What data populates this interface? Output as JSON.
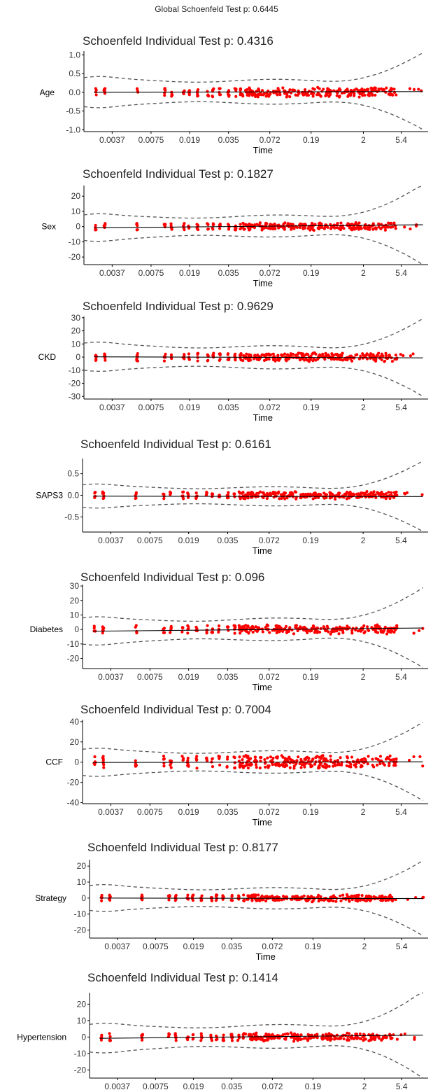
{
  "global_title": "Global Schoenfeld Test p: 0.6445",
  "x_axis_label": "Time",
  "x_ticks": [
    "0.0037",
    "0.0075",
    "0.019",
    "0.035",
    "0.072",
    "0.19",
    "2",
    "5.4"
  ],
  "colors": {
    "points": "#ff0000",
    "fit": "#000000",
    "band": "#555555",
    "axis": "#000000"
  },
  "chart_data": [
    {
      "type": "scatter",
      "ylabel": "Age",
      "title": "Schoenfeld Individual Test p: 0.4316",
      "yticks": [
        "1.0",
        "0.5",
        "0.0",
        "-0.5",
        "-1.0"
      ],
      "tick_values": [
        1,
        0.5,
        0,
        -0.5,
        -1
      ],
      "ylim": [
        -1.05,
        1.1
      ],
      "point_spread": 0.12,
      "band_min": 0.3,
      "band_end": 1.0,
      "fit_start": 0.0,
      "fit_end": 0.02
    },
    {
      "type": "scatter",
      "ylabel": "Sex",
      "title": "Schoenfeld Individual Test p: 0.1827",
      "yticks": [
        "20",
        "10",
        "0",
        "-10",
        "-20"
      ],
      "tick_values": [
        20,
        10,
        0,
        -10,
        -20
      ],
      "ylim": [
        -25,
        27
      ],
      "point_spread": 2.2,
      "band_min": 6.5,
      "band_end": 26,
      "fit_start": -0.8,
      "fit_end": 1.2
    },
    {
      "type": "scatter",
      "ylabel": "CKD",
      "title": "Schoenfeld Individual Test p: 0.9629",
      "yticks": [
        "30",
        "20",
        "10",
        "0",
        "-10",
        "-20",
        "-30"
      ],
      "tick_values": [
        30,
        20,
        10,
        0,
        -10,
        -20,
        -30
      ],
      "ylim": [
        -32,
        31
      ],
      "point_spread": 3,
      "band_min": 8,
      "band_end": 29,
      "fit_start": 0.2,
      "fit_end": -0.6
    },
    {
      "type": "scatter",
      "ylabel": "SAPS3",
      "title": "Schoenfeld Individual Test p: 0.6161",
      "yticks": [
        "0.5",
        "0.0",
        "-0.5"
      ],
      "tick_values": [
        0.5,
        0,
        -0.5
      ],
      "ylim": [
        -0.85,
        0.85
      ],
      "point_spread": 0.08,
      "band_min": 0.2,
      "band_end": 0.8,
      "fit_start": -0.02,
      "fit_end": -0.03
    },
    {
      "type": "scatter",
      "ylabel": "Diabetes",
      "title": "Schoenfeld Individual Test p: 0.096",
      "yticks": [
        "30",
        "20",
        "10",
        "0",
        "-10",
        "-20"
      ],
      "tick_values": [
        30,
        20,
        10,
        0,
        -10,
        -20
      ],
      "ylim": [
        -27,
        31
      ],
      "point_spread": 2.8,
      "band_min": 7,
      "band_end": 27,
      "fit_start": -1.2,
      "fit_end": 1.0
    },
    {
      "type": "scatter",
      "ylabel": "CCF",
      "title": "Schoenfeld Individual Test p: 0.7004",
      "yticks": [
        "40",
        "20",
        "0",
        "-20",
        "-40"
      ],
      "tick_values": [
        40,
        20,
        0,
        -20,
        -40
      ],
      "ylim": [
        -41,
        42
      ],
      "point_spread": 6,
      "band_min": 10,
      "band_end": 38,
      "fit_start": -0.3,
      "fit_end": 0.4
    },
    {
      "type": "scatter",
      "ylabel": "Strategy",
      "title": "Schoenfeld Individual Test p: 0.8177",
      "yticks": [
        "20",
        "10",
        "0",
        "-10",
        "-20"
      ],
      "tick_values": [
        20,
        10,
        0,
        -10,
        -20
      ],
      "ylim": [
        -25,
        24
      ],
      "point_spread": 2,
      "band_min": 6,
      "band_end": 23,
      "fit_start": 0.0,
      "fit_end": -0.3
    },
    {
      "type": "scatter",
      "ylabel": "Hypertension",
      "title": "Schoenfeld Individual Test p: 0.1414",
      "yticks": [
        "20",
        "10",
        "0",
        "-10",
        "-20"
      ],
      "tick_values": [
        20,
        10,
        0,
        -10,
        -20
      ],
      "ylim": [
        -25,
        27
      ],
      "point_spread": 2.2,
      "band_min": 6.5,
      "band_end": 26,
      "fit_start": -0.8,
      "fit_end": 1.2
    }
  ]
}
